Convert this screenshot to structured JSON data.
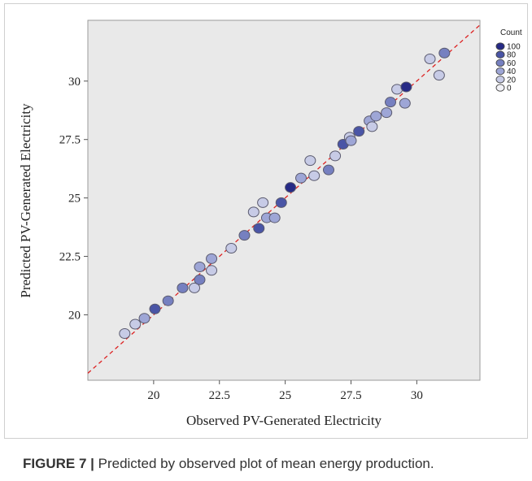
{
  "figure": {
    "caption_label": "FIGURE 7 |",
    "caption_text": " Predicted by observed plot of mean energy production."
  },
  "chart_data": {
    "type": "scatter",
    "title": "",
    "xlabel": "Observed PV-Generated Electricity",
    "ylabel": "Predicted PV-Generated Electricity",
    "xlim": [
      17.5,
      32.4
    ],
    "ylim": [
      17.2,
      32.6
    ],
    "xticks": [
      20,
      22.5,
      25,
      27.5,
      30
    ],
    "yticks": [
      20,
      22.5,
      25,
      27.5,
      30
    ],
    "xtick_labels": [
      "20",
      "22.5",
      "25",
      "27.5",
      "30"
    ],
    "ytick_labels": [
      "20",
      "22.5",
      "25",
      "27.5",
      "30"
    ],
    "reference_line": {
      "type": "identity",
      "color": "#dd2222",
      "style": "dashed"
    },
    "plot_background": "#e9e9e9",
    "grid": false,
    "legend": {
      "title": "Count",
      "position": "right",
      "entries": [
        {
          "label": "100",
          "color": "#262a86"
        },
        {
          "label": "80",
          "color": "#4a55a6"
        },
        {
          "label": "60",
          "color": "#7680c0"
        },
        {
          "label": "40",
          "color": "#9ea6d6"
        },
        {
          "label": "20",
          "color": "#c7cbe6"
        },
        {
          "label": "0",
          "color": "#f2f2f7"
        }
      ]
    },
    "points": [
      {
        "x": 18.9,
        "y": 19.2,
        "count": 20
      },
      {
        "x": 19.3,
        "y": 19.6,
        "count": 20
      },
      {
        "x": 19.65,
        "y": 19.85,
        "count": 40
      },
      {
        "x": 20.05,
        "y": 20.25,
        "count": 80
      },
      {
        "x": 20.55,
        "y": 20.6,
        "count": 60
      },
      {
        "x": 21.1,
        "y": 21.15,
        "count": 60
      },
      {
        "x": 21.55,
        "y": 21.15,
        "count": 20
      },
      {
        "x": 21.75,
        "y": 21.5,
        "count": 60
      },
      {
        "x": 21.75,
        "y": 22.05,
        "count": 40
      },
      {
        "x": 22.2,
        "y": 21.9,
        "count": 20
      },
      {
        "x": 22.2,
        "y": 22.4,
        "count": 40
      },
      {
        "x": 22.95,
        "y": 22.85,
        "count": 20
      },
      {
        "x": 23.45,
        "y": 23.4,
        "count": 60
      },
      {
        "x": 23.8,
        "y": 24.4,
        "count": 20
      },
      {
        "x": 24.0,
        "y": 23.7,
        "count": 80
      },
      {
        "x": 24.15,
        "y": 24.8,
        "count": 20
      },
      {
        "x": 24.3,
        "y": 24.15,
        "count": 40
      },
      {
        "x": 24.6,
        "y": 24.15,
        "count": 40
      },
      {
        "x": 24.85,
        "y": 24.8,
        "count": 80
      },
      {
        "x": 25.2,
        "y": 25.45,
        "count": 100
      },
      {
        "x": 25.6,
        "y": 25.85,
        "count": 40
      },
      {
        "x": 25.95,
        "y": 26.6,
        "count": 20
      },
      {
        "x": 26.1,
        "y": 25.95,
        "count": 20
      },
      {
        "x": 26.65,
        "y": 26.2,
        "count": 60
      },
      {
        "x": 26.9,
        "y": 26.8,
        "count": 20
      },
      {
        "x": 27.2,
        "y": 27.3,
        "count": 80
      },
      {
        "x": 27.45,
        "y": 27.6,
        "count": 20
      },
      {
        "x": 27.5,
        "y": 27.45,
        "count": 40
      },
      {
        "x": 27.8,
        "y": 27.85,
        "count": 80
      },
      {
        "x": 28.2,
        "y": 28.3,
        "count": 40
      },
      {
        "x": 28.3,
        "y": 28.05,
        "count": 20
      },
      {
        "x": 28.45,
        "y": 28.5,
        "count": 40
      },
      {
        "x": 28.85,
        "y": 28.65,
        "count": 40
      },
      {
        "x": 29.0,
        "y": 29.1,
        "count": 60
      },
      {
        "x": 29.25,
        "y": 29.65,
        "count": 20
      },
      {
        "x": 29.55,
        "y": 29.05,
        "count": 40
      },
      {
        "x": 29.6,
        "y": 29.75,
        "count": 100
      },
      {
        "x": 30.5,
        "y": 30.95,
        "count": 20
      },
      {
        "x": 30.85,
        "y": 30.25,
        "count": 20
      },
      {
        "x": 31.05,
        "y": 31.2,
        "count": 60
      }
    ]
  }
}
